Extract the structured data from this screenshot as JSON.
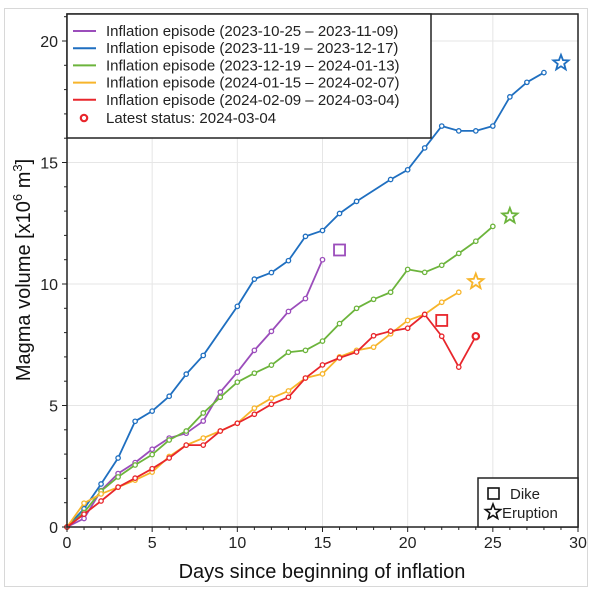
{
  "chart_data": {
    "type": "line",
    "title": "",
    "xlabel": "Days since beginning of inflation",
    "ylabel_main": "Magma volume [x10",
    "ylabel_exp": "6",
    "ylabel_mid": " m",
    "ylabel_exp2": "3",
    "ylabel_end": "]",
    "xlim": [
      0,
      30
    ],
    "ylim": [
      0,
      21.1
    ],
    "grid": true,
    "x_ticks": [
      0,
      5,
      10,
      15,
      20,
      25,
      30
    ],
    "x_tick_labels": [
      "0",
      "5",
      "10",
      "15",
      "20",
      "25",
      "30"
    ],
    "y_ticks": [
      0,
      5,
      10,
      15,
      20
    ],
    "y_tick_labels": [
      "0",
      "5",
      "10",
      "15",
      "20"
    ],
    "legend_position": "top-left",
    "series": [
      {
        "name": "Inflation episode (2023-10-25 – 2023-11-09)",
        "color": "#9b4dbb",
        "x": [
          0,
          1,
          2,
          3,
          4,
          5,
          6,
          7,
          8,
          9,
          10,
          11,
          12,
          13,
          14,
          15
        ],
        "y": [
          0,
          0.35,
          1.5,
          2.2,
          2.65,
          3.2,
          3.66,
          3.86,
          4.36,
          5.55,
          6.37,
          7.27,
          8.05,
          8.87,
          9.4,
          11.0
        ],
        "dike": {
          "x": 16,
          "y": 11.4
        }
      },
      {
        "name": "Inflation episode (2023-11-19 – 2023-12-17)",
        "color": "#1f6fc0",
        "x": [
          0,
          1,
          2,
          3,
          4,
          5,
          6,
          7,
          8,
          10,
          11,
          12,
          13,
          14,
          15,
          16,
          17,
          19,
          20,
          21,
          22,
          23,
          24,
          25,
          26,
          27,
          28
        ],
        "y": [
          0,
          0.75,
          1.77,
          2.84,
          4.35,
          4.77,
          5.38,
          6.29,
          7.06,
          9.08,
          10.2,
          10.47,
          10.96,
          11.96,
          12.2,
          12.9,
          13.4,
          14.3,
          14.7,
          15.6,
          16.5,
          16.3,
          16.3,
          16.5,
          17.7,
          18.3,
          18.7
        ],
        "eruption": {
          "x": 29,
          "y": 19.1
        }
      },
      {
        "name": "Inflation episode (2023-12-19 – 2024-01-13)",
        "color": "#6cb43c",
        "x": [
          0,
          1,
          2,
          3,
          4,
          5,
          6,
          7,
          8,
          9,
          10,
          11,
          12,
          13,
          14,
          15,
          16,
          17,
          18,
          19,
          20,
          21,
          22,
          23,
          24,
          25
        ],
        "y": [
          0,
          0.6,
          1.48,
          2.06,
          2.55,
          2.98,
          3.58,
          3.95,
          4.69,
          5.34,
          5.96,
          6.33,
          6.66,
          7.19,
          7.27,
          7.65,
          8.37,
          9.0,
          9.37,
          9.66,
          10.6,
          10.48,
          10.77,
          11.26,
          11.76,
          12.37
        ],
        "eruption": {
          "x": 26,
          "y": 12.8
        }
      },
      {
        "name": "Inflation episode (2024-01-15 – 2024-02-07)",
        "color": "#f7b52b",
        "x": [
          0,
          1,
          2,
          3,
          4,
          5,
          6,
          7,
          8,
          9,
          10,
          11,
          12,
          13,
          14,
          15,
          16,
          17,
          18,
          19,
          20,
          21,
          22,
          23
        ],
        "y": [
          0,
          0.98,
          1.36,
          1.64,
          1.93,
          2.26,
          2.9,
          3.37,
          3.66,
          3.95,
          4.27,
          4.89,
          5.3,
          5.6,
          6.13,
          6.3,
          7.0,
          7.27,
          7.4,
          7.95,
          8.5,
          8.75,
          9.25,
          9.66
        ],
        "eruption": {
          "x": 24,
          "y": 10.1
        }
      },
      {
        "name": "Inflation episode (2024-02-09 – 2024-03-04)",
        "color": "#e8262c",
        "x": [
          0,
          1,
          2,
          3,
          4,
          5,
          6,
          7,
          8,
          9,
          10,
          11,
          12,
          13,
          14,
          15,
          16,
          17,
          18,
          19,
          20,
          21,
          22,
          23,
          24
        ],
        "y": [
          0,
          0.53,
          1.07,
          1.64,
          2.01,
          2.4,
          2.84,
          3.37,
          3.37,
          3.95,
          4.27,
          4.64,
          5.05,
          5.34,
          6.13,
          6.67,
          6.96,
          7.2,
          7.87,
          8.06,
          8.18,
          8.75,
          7.85,
          6.58,
          7.85
        ],
        "dike": {
          "x": 22,
          "y": 8.5
        },
        "latest": {
          "x": 24,
          "y": 7.85
        }
      }
    ],
    "latest_status_label": "Latest status: 2024-03-04",
    "latest_status_color": "#e8262c",
    "marker_legend": [
      {
        "symbol": "square",
        "label": "Dike"
      },
      {
        "symbol": "star",
        "label": "Eruption"
      }
    ]
  }
}
